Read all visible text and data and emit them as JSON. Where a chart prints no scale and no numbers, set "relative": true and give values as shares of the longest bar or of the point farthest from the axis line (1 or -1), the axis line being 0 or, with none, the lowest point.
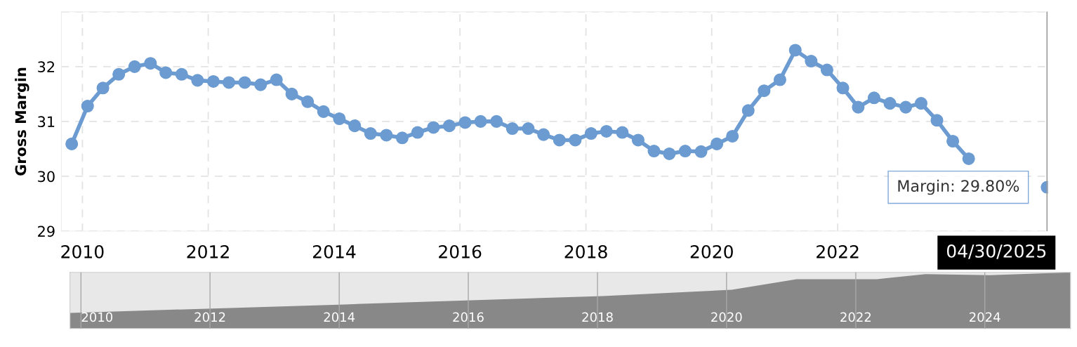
{
  "chart_data": [
    {
      "type": "line",
      "ylabel": "Gross Margin",
      "x": [
        "2009-10-31",
        "2010-01-31",
        "2010-04-30",
        "2010-07-31",
        "2010-10-31",
        "2011-01-31",
        "2011-04-30",
        "2011-07-31",
        "2011-10-31",
        "2012-01-31",
        "2012-04-30",
        "2012-07-31",
        "2012-10-31",
        "2013-01-31",
        "2013-04-30",
        "2013-07-31",
        "2013-10-31",
        "2014-01-31",
        "2014-04-30",
        "2014-07-31",
        "2014-10-31",
        "2015-01-31",
        "2015-04-30",
        "2015-07-31",
        "2015-10-31",
        "2016-01-31",
        "2016-04-30",
        "2016-07-31",
        "2016-10-31",
        "2017-01-31",
        "2017-04-30",
        "2017-07-31",
        "2017-10-31",
        "2018-01-31",
        "2018-04-30",
        "2018-07-31",
        "2018-10-31",
        "2019-01-31",
        "2019-04-30",
        "2019-07-31",
        "2019-10-31",
        "2020-01-31",
        "2020-04-30",
        "2020-07-31",
        "2020-10-31",
        "2021-01-31",
        "2021-04-30",
        "2021-07-31",
        "2021-10-31",
        "2022-01-31",
        "2022-04-30",
        "2022-07-31",
        "2022-10-31",
        "2023-01-31",
        "2023-04-30",
        "2023-07-31",
        "2023-10-31",
        "2024-01-31",
        "2024-04-30",
        "2024-07-31",
        "2024-10-31",
        "2025-01-31",
        "2025-04-30"
      ],
      "series": [
        {
          "color": "#6b9bd1",
          "values": [
            30.59,
            31.28,
            31.61,
            31.86,
            32.0,
            32.06,
            31.89,
            31.86,
            31.75,
            31.73,
            31.71,
            31.71,
            31.67,
            31.76,
            31.5,
            31.36,
            31.18,
            31.05,
            30.92,
            30.78,
            30.75,
            30.7,
            30.8,
            30.89,
            30.92,
            30.98,
            31.0,
            31.0,
            30.87,
            30.87,
            30.76,
            30.66,
            30.66,
            30.78,
            30.82,
            30.8,
            30.66,
            30.46,
            30.41,
            30.46,
            30.45,
            30.59,
            30.73,
            31.2,
            31.56,
            31.76,
            32.3,
            32.1,
            31.94,
            31.61,
            31.26,
            31.43,
            31.33,
            31.26,
            31.33,
            31.02,
            30.64,
            30.32,
            null,
            null,
            null,
            null,
            29.8
          ]
        }
      ],
      "marker": "circle",
      "line_style": "solid",
      "xlim": [
        "2009-09-01",
        "2025-05-05"
      ],
      "xticks": [
        "2010",
        "2012",
        "2014",
        "2016",
        "2018",
        "2020",
        "2022"
      ],
      "ylim": [
        29,
        33
      ],
      "yticks": [
        29,
        30,
        31,
        32,
        {
          "value": 33,
          "label": null
        }
      ],
      "grid": true,
      "ref_lines": [
        {
          "axis": "x",
          "value": "2025-04-30",
          "label": "04/30/2025",
          "color": "#999999"
        }
      ],
      "annotations": [
        {
          "text": "Margin: 29.80%",
          "x": "2025-04-30",
          "y": 29.8
        }
      ]
    },
    {
      "type": "area",
      "relative": true,
      "tick_labels": "x",
      "grid": "x",
      "x": [
        "2009-10-31",
        "2014-01-31",
        "2018-01-31",
        "2020-01-31",
        "2021-01-31",
        "2022-04-30",
        "2023-01-31",
        "2024-01-31",
        "2025-04-30"
      ],
      "series": [
        {
          "color": "#888888",
          "values": [
            0.28,
            0.43,
            0.58,
            0.69,
            0.88,
            0.88,
            0.97,
            0.95,
            1
          ]
        }
      ],
      "xlim": [
        "2009-10-31",
        "2025-04-30"
      ],
      "xticks": [
        "2010",
        "2012",
        "2014",
        "2016",
        "2018",
        "2020",
        "2022",
        "2024"
      ]
    }
  ]
}
